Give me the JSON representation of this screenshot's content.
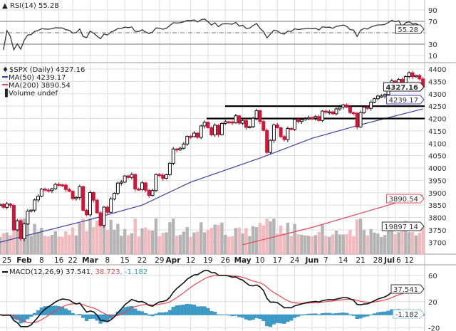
{
  "chart_data": {
    "type": "candlestick",
    "title": "$SPX (Daily) 4327.16",
    "price": {
      "ticks": [
        3700,
        3750,
        3800,
        3850,
        3900,
        3950,
        4000,
        4050,
        4100,
        4150,
        4200,
        4250,
        4300,
        4350,
        4400
      ],
      "ylim": [
        3680,
        4420
      ],
      "last_label": "4327.16"
    },
    "dates": [
      "01-21",
      "01-22",
      "01-25",
      "01-26",
      "01-27",
      "01-28",
      "01-29",
      "02-01",
      "02-02",
      "02-03",
      "02-04",
      "02-05",
      "02-08",
      "02-09",
      "02-10",
      "02-11",
      "02-12",
      "02-16",
      "02-17",
      "02-18",
      "02-19",
      "02-22",
      "02-23",
      "02-24",
      "02-25",
      "02-26",
      "03-01",
      "03-02",
      "03-03",
      "03-04",
      "03-05",
      "03-08",
      "03-09",
      "03-10",
      "03-11",
      "03-12",
      "03-15",
      "03-16",
      "03-17",
      "03-18",
      "03-19",
      "03-22",
      "03-23",
      "03-24",
      "03-25",
      "03-26",
      "03-29",
      "03-30",
      "03-31",
      "04-01",
      "04-05",
      "04-06",
      "04-07",
      "04-08",
      "04-09",
      "04-12",
      "04-13",
      "04-14",
      "04-15",
      "04-16",
      "04-19",
      "04-20",
      "04-21",
      "04-22",
      "04-23",
      "04-26",
      "04-27",
      "04-28",
      "04-29",
      "04-30",
      "05-03",
      "05-04",
      "05-05",
      "05-06",
      "05-07",
      "05-10",
      "05-11",
      "05-12",
      "05-13",
      "05-14",
      "05-17",
      "05-18",
      "05-19",
      "05-20",
      "05-21",
      "05-24",
      "05-25",
      "05-26",
      "05-27",
      "05-28",
      "06-01",
      "06-02",
      "06-03",
      "06-04",
      "06-07",
      "06-08",
      "06-09",
      "06-10",
      "06-11",
      "06-14",
      "06-15",
      "06-16",
      "06-17",
      "06-18",
      "06-21",
      "06-22",
      "06-23",
      "06-24",
      "06-25",
      "06-28",
      "06-29",
      "06-30",
      "07-01",
      "07-02",
      "07-06",
      "07-07",
      "07-08",
      "07-09",
      "07-12",
      "07-13",
      "07-14",
      "07-15",
      "07-16"
    ],
    "close": [
      3853,
      3841,
      3855,
      3849,
      3750,
      3787,
      3714,
      3774,
      3826,
      3830,
      3871,
      3886,
      3915,
      3911,
      3909,
      3916,
      3934,
      3932,
      3931,
      3913,
      3906,
      3876,
      3881,
      3925,
      3829,
      3811,
      3901,
      3870,
      3819,
      3768,
      3842,
      3821,
      3875,
      3898,
      3939,
      3943,
      3968,
      3962,
      3974,
      3915,
      3913,
      3940,
      3910,
      3889,
      3909,
      3974,
      3971,
      3958,
      3973,
      4019,
      4077,
      4073,
      4080,
      4097,
      4128,
      4127,
      4141,
      4124,
      4170,
      4185,
      4163,
      4134,
      4173,
      4135,
      4180,
      4187,
      4186,
      4183,
      4211,
      4181,
      4192,
      4164,
      4167,
      4201,
      4232,
      4188,
      4152,
      4063,
      4112,
      4174,
      4163,
      4127,
      4115,
      4160,
      4156,
      4197,
      4188,
      4195,
      4200,
      4204,
      4202,
      4208,
      4192,
      4230,
      4226,
      4227,
      4219,
      4239,
      4247,
      4255,
      4246,
      4224,
      4221,
      4166,
      4224,
      4246,
      4241,
      4266,
      4280,
      4291,
      4291,
      4297,
      4320,
      4352,
      4343,
      4358,
      4320,
      4370,
      4385,
      4369,
      4374,
      4360,
      4327
    ],
    "ma50": {
      "label": "MA(50) 4239.17",
      "last_label": "4239.17",
      "color": "#3b3fa0",
      "points": [
        [
          "01-21",
          3700
        ],
        [
          "02-26",
          3788
        ],
        [
          "03-22",
          3850
        ],
        [
          "04-12",
          3943
        ],
        [
          "05-10",
          4040
        ],
        [
          "06-01",
          4120
        ],
        [
          "06-21",
          4175
        ],
        [
          "07-16",
          4239.17
        ]
      ]
    },
    "ma200": {
      "label": "MA(200) 3890.54",
      "last_label": "3890.54",
      "color": "#e0485a",
      "points": [
        [
          "05-03",
          3690
        ],
        [
          "06-01",
          3760
        ],
        [
          "07-01",
          3850
        ],
        [
          "07-16",
          3890.54
        ]
      ]
    },
    "volume": {
      "label": "Volume undef",
      "last_label": "19897 14",
      "up_color": "#b4b4b4",
      "down_color": "#f2b9be"
    },
    "support_lines": [
      4250,
      4200
    ],
    "rsi": {
      "label": "RSI(14) 55.28",
      "last_label": "55.28",
      "ticks": [
        90,
        70,
        30,
        10
      ],
      "levels": [
        70,
        50,
        30
      ],
      "ylim": [
        0,
        100
      ]
    },
    "macd": {
      "label_main": "MACD(12,26,9) 37.541",
      "label_signal": ", 38.723",
      "label_hist": ", -1.182",
      "last_label": "37.541",
      "hist_last_label": "-1.182",
      "ticks": [
        60,
        20,
        -20
      ],
      "macd_color": "#111111",
      "signal_color": "#e8454f",
      "hist_color": "#3d9cc8"
    },
    "x_labels": [
      {
        "text": "25",
        "date": "01-25",
        "bold": false
      },
      {
        "text": "Feb",
        "date": "02-01",
        "bold": true
      },
      {
        "text": "8",
        "date": "02-08",
        "bold": false
      },
      {
        "text": "16",
        "date": "02-16",
        "bold": false
      },
      {
        "text": "22",
        "date": "02-22",
        "bold": false
      },
      {
        "text": "Mar",
        "date": "03-01",
        "bold": true
      },
      {
        "text": "8",
        "date": "03-08",
        "bold": false
      },
      {
        "text": "15",
        "date": "03-15",
        "bold": false
      },
      {
        "text": "22",
        "date": "03-22",
        "bold": false
      },
      {
        "text": "29",
        "date": "03-29",
        "bold": false
      },
      {
        "text": "Apr",
        "date": "04-01",
        "bold": true
      },
      {
        "text": "12",
        "date": "04-12",
        "bold": false
      },
      {
        "text": "19",
        "date": "04-19",
        "bold": false
      },
      {
        "text": "26",
        "date": "04-26",
        "bold": false
      },
      {
        "text": "May",
        "date": "05-03",
        "bold": true
      },
      {
        "text": "10",
        "date": "05-10",
        "bold": false
      },
      {
        "text": "17",
        "date": "05-17",
        "bold": false
      },
      {
        "text": "24",
        "date": "05-24",
        "bold": false
      },
      {
        "text": "Jun",
        "date": "06-01",
        "bold": true
      },
      {
        "text": "7",
        "date": "06-07",
        "bold": false
      },
      {
        "text": "14",
        "date": "06-14",
        "bold": false
      },
      {
        "text": "21",
        "date": "06-21",
        "bold": false
      },
      {
        "text": "28",
        "date": "06-28",
        "bold": false
      },
      {
        "text": "Jul",
        "date": "07-01",
        "bold": true
      },
      {
        "text": "6",
        "date": "07-06",
        "bold": false
      },
      {
        "text": "12",
        "date": "07-12",
        "bold": false
      }
    ],
    "colors": {
      "up": "#111111",
      "down": "#d0173a",
      "grid": "#dddddd"
    }
  }
}
